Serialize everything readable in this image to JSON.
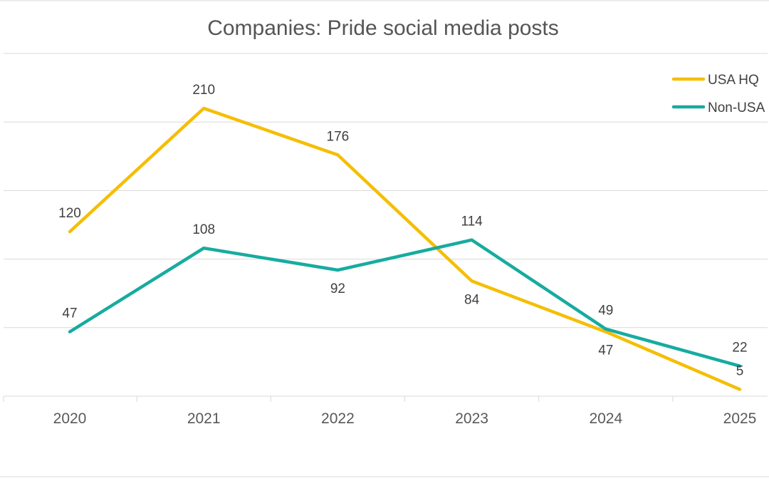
{
  "chart_data": {
    "type": "line",
    "title": "Companies: Pride social media posts",
    "xlabel": "",
    "ylabel": "",
    "categories": [
      "2020",
      "2021",
      "2022",
      "2023",
      "2024",
      "2025"
    ],
    "series": [
      {
        "name": "USA HQ",
        "color": "#F5BE05",
        "values": [
          120,
          210,
          176,
          84,
          47,
          5
        ],
        "label_position": [
          "above",
          "above",
          "above",
          "below",
          "below",
          "above"
        ]
      },
      {
        "name": "Non-USA",
        "color": "#17ABA0",
        "values": [
          47,
          108,
          92,
          114,
          49,
          22
        ],
        "label_position": [
          "above",
          "above",
          "below",
          "above",
          "above",
          "above"
        ]
      }
    ],
    "ylim": [
      0,
      250
    ],
    "grid": true,
    "legend_position": "top-right"
  }
}
